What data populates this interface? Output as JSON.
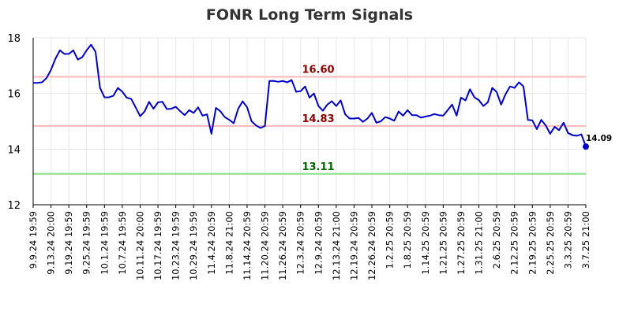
{
  "chart_data": {
    "type": "line",
    "title": "FONR Long Term Signals",
    "xlabel": "",
    "ylabel": "",
    "ylim": [
      12,
      18
    ],
    "yticks": [
      12,
      14,
      16,
      18
    ],
    "x_tick_labels": [
      "9.9.24 19:59",
      "9.13.24 20:00",
      "9.19.24 19:59",
      "9.25.24 19:59",
      "10.1.24 19:59",
      "10.7.24 19:59",
      "10.11.24 20:00",
      "10.17.24 19:59",
      "10.23.24 19:59",
      "10.29.24 19:59",
      "11.4.24 20:59",
      "11.8.24 21:00",
      "11.14.24 20:59",
      "11.20.24 20:59",
      "11.26.24 20:59",
      "12.3.24 20:59",
      "12.9.24 20:59",
      "12.13.24 21:00",
      "12.19.24 20:59",
      "12.26.24 20:59",
      "1.2.25 20:59",
      "1.8.25 20:59",
      "1.14.25 20:59",
      "1.21.25 20:59",
      "1.27.25 20:59",
      "1.31.25 21:00",
      "2.6.25 20:59",
      "2.12.25 20:59",
      "2.19.25 20:59",
      "2.25.25 20:59",
      "3.3.25 20:59",
      "3.7.25 21:00"
    ],
    "grid": true,
    "series": [
      {
        "color": "#0000cc",
        "values": [
          16.38,
          16.38,
          16.4,
          16.55,
          16.85,
          17.25,
          17.55,
          17.42,
          17.42,
          17.55,
          17.22,
          17.3,
          17.55,
          17.75,
          17.5,
          16.2,
          15.86,
          15.86,
          15.92,
          16.2,
          16.06,
          15.85,
          15.8,
          15.5,
          15.18,
          15.35,
          15.7,
          15.45,
          15.68,
          15.7,
          15.44,
          15.45,
          15.52,
          15.36,
          15.22,
          15.4,
          15.3,
          15.5,
          15.2,
          15.25,
          14.55,
          15.48,
          15.36,
          15.15,
          15.05,
          14.93,
          15.45,
          15.72,
          15.5,
          15.0,
          14.85,
          14.76,
          14.83,
          16.45,
          16.45,
          16.42,
          16.45,
          16.4,
          16.48,
          16.06,
          16.08,
          16.25,
          15.85,
          16.0,
          15.55,
          15.38,
          15.6,
          15.72,
          15.55,
          15.75,
          15.25,
          15.1,
          15.1,
          15.12,
          14.98,
          15.1,
          15.3,
          14.95,
          15.0,
          15.15,
          15.1,
          15.02,
          15.35,
          15.2,
          15.4,
          15.22,
          15.22,
          15.13,
          15.17,
          15.2,
          15.26,
          15.22,
          15.2,
          15.4,
          15.6,
          15.2,
          15.85,
          15.75,
          16.15,
          15.86,
          15.76,
          15.55,
          15.68,
          16.2,
          16.05,
          15.6,
          15.98,
          16.25,
          16.2,
          16.4,
          16.25,
          15.05,
          15.03,
          14.72,
          15.05,
          14.85,
          14.55,
          14.8,
          14.68,
          14.95,
          14.58,
          14.5,
          14.48,
          14.53,
          14.09
        ]
      }
    ],
    "last_value": "14.09",
    "reference_lines": [
      {
        "value": 16.6,
        "label": "16.60",
        "line_color": "#ffbbbb",
        "label_color": "#8b0000"
      },
      {
        "value": 14.83,
        "label": "14.83",
        "line_color": "#ffbbbb",
        "label_color": "#8b0000"
      },
      {
        "value": 13.11,
        "label": "13.11",
        "line_color": "#88e088",
        "label_color": "#006400"
      }
    ]
  }
}
